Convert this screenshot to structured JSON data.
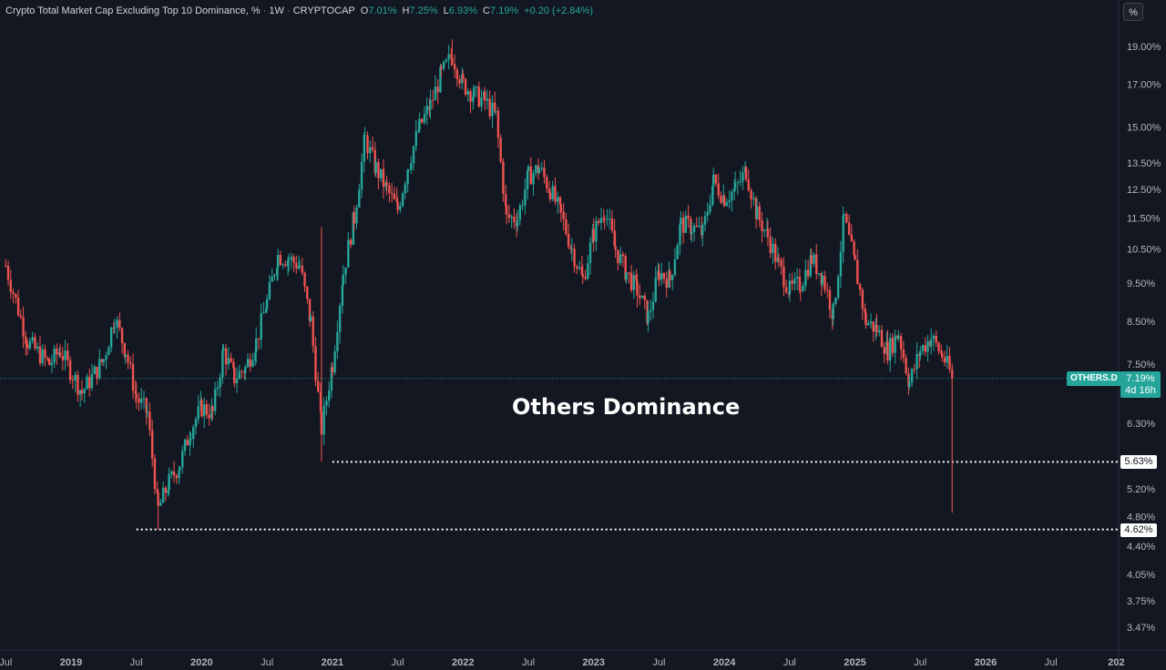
{
  "header": {
    "title": "Crypto Total Market Cap Excluding Top 10 Dominance, %",
    "interval": "1W",
    "exchange": "CRYPTOCAP",
    "open_label": "O",
    "open": "7.01%",
    "high_label": "H",
    "high": "7.25%",
    "low_label": "L",
    "low": "6.93%",
    "close_label": "C",
    "close": "7.19%",
    "change": "+0.20 (+2.84%)"
  },
  "scale_button": "%",
  "annotation": "Others Dominance",
  "symbol_tag": "OTHERS.D",
  "price_tag": {
    "value": "7.19%",
    "countdown": "4d 16h"
  },
  "level_tags": [
    {
      "label": "5.63%"
    },
    {
      "label": "4.62%"
    }
  ],
  "colors": {
    "background": "#131722",
    "up": "#26a69a",
    "down": "#ef5350",
    "text": "#b2b5be"
  },
  "chart_data": {
    "type": "candlestick",
    "y_scale": "log",
    "y_axis_ticks": [
      "19.00%",
      "17.00%",
      "15.00%",
      "13.50%",
      "12.50%",
      "11.50%",
      "10.50%",
      "9.50%",
      "8.50%",
      "7.50%",
      "6.30%",
      "5.20%",
      "4.80%",
      "4.40%",
      "4.05%",
      "3.75%",
      "3.47%"
    ],
    "y_axis_values": [
      19.0,
      17.0,
      15.0,
      13.5,
      12.5,
      11.5,
      10.5,
      9.5,
      8.5,
      7.5,
      6.3,
      5.2,
      4.8,
      4.4,
      4.05,
      3.75,
      3.47
    ],
    "x_axis_ticks": [
      "Jul",
      "2019",
      "Jul",
      "2020",
      "Jul",
      "2021",
      "Jul",
      "2022",
      "Jul",
      "2023",
      "Jul",
      "2024",
      "Jul",
      "2025",
      "Jul",
      "2026",
      "Jul",
      "202"
    ],
    "x_axis_dates": [
      "2018-07",
      "2019-01",
      "2019-07",
      "2020-01",
      "2020-07",
      "2021-01",
      "2021-07",
      "2022-01",
      "2022-07",
      "2023-01",
      "2023-07",
      "2024-01",
      "2024-07",
      "2025-01",
      "2025-07",
      "2026-01",
      "2026-07",
      "2027-01"
    ],
    "x_range": [
      "2018-07",
      "2027-01"
    ],
    "horizontal_levels": [
      {
        "value": 5.63,
        "from": "2021-01",
        "style": "dotted"
      },
      {
        "value": 4.62,
        "from": "2019-07",
        "style": "dotted"
      }
    ],
    "last_price": 7.19,
    "series": [
      {
        "interval": "weekly",
        "path": [
          [
            "2018-07",
            10.0
          ],
          [
            "2018-09",
            8.0
          ],
          [
            "2018-11",
            7.5
          ],
          [
            "2018-12",
            7.8
          ],
          [
            "2019-02",
            6.9
          ],
          [
            "2019-04",
            7.6
          ],
          [
            "2019-05",
            8.6
          ],
          [
            "2019-06",
            7.8
          ],
          [
            "2019-07",
            6.8
          ],
          [
            "2019-08",
            6.5
          ],
          [
            "2019-09",
            4.9
          ],
          [
            "2019-10",
            5.3
          ],
          [
            "2019-11",
            5.6
          ],
          [
            "2019-12",
            6.2
          ],
          [
            "2020-01",
            6.6
          ],
          [
            "2020-02",
            6.5
          ],
          [
            "2020-03",
            7.8
          ],
          [
            "2020-04",
            7.2
          ],
          [
            "2020-05",
            7.4
          ],
          [
            "2020-06",
            8.0
          ],
          [
            "2020-07",
            9.0
          ],
          [
            "2020-08",
            10.3
          ],
          [
            "2020-09",
            10.2
          ],
          [
            "2020-10",
            10.0
          ],
          [
            "2020-11",
            8.5
          ],
          [
            "2020-12",
            6.2
          ],
          [
            "2021-01",
            7.5
          ],
          [
            "2021-02",
            9.8
          ],
          [
            "2021-03",
            11.5
          ],
          [
            "2021-04",
            14.5
          ],
          [
            "2021-05",
            13.3
          ],
          [
            "2021-06",
            12.5
          ],
          [
            "2021-07",
            11.8
          ],
          [
            "2021-08",
            13.5
          ],
          [
            "2021-09",
            15.0
          ],
          [
            "2021-10",
            16.0
          ],
          [
            "2021-11",
            17.5
          ],
          [
            "2021-12",
            18.5
          ],
          [
            "2022-01",
            17.0
          ],
          [
            "2022-02",
            16.5
          ],
          [
            "2022-03",
            16.2
          ],
          [
            "2022-04",
            15.5
          ],
          [
            "2022-05",
            11.5
          ],
          [
            "2022-06",
            11.5
          ],
          [
            "2022-07",
            13.0
          ],
          [
            "2022-08",
            13.3
          ],
          [
            "2022-09",
            12.5
          ],
          [
            "2022-10",
            11.6
          ],
          [
            "2022-11",
            10.5
          ],
          [
            "2022-12",
            9.6
          ],
          [
            "2023-01",
            11.0
          ],
          [
            "2023-02",
            11.8
          ],
          [
            "2023-03",
            10.5
          ],
          [
            "2023-04",
            9.8
          ],
          [
            "2023-05",
            9.3
          ],
          [
            "2023-06",
            8.6
          ],
          [
            "2023-07",
            9.8
          ],
          [
            "2023-08",
            9.6
          ],
          [
            "2023-09",
            11.3
          ],
          [
            "2023-10",
            11.2
          ],
          [
            "2023-11",
            11.0
          ],
          [
            "2023-12",
            12.8
          ],
          [
            "2024-01",
            12.2
          ],
          [
            "2024-02",
            12.5
          ],
          [
            "2024-03",
            13.2
          ],
          [
            "2024-04",
            11.6
          ],
          [
            "2024-05",
            10.9
          ],
          [
            "2024-06",
            10.0
          ],
          [
            "2024-07",
            9.3
          ],
          [
            "2024-08",
            9.5
          ],
          [
            "2024-09",
            10.2
          ],
          [
            "2024-10",
            9.7
          ],
          [
            "2024-11",
            8.7
          ],
          [
            "2024-12",
            11.5
          ],
          [
            "2025-01",
            10.0
          ],
          [
            "2025-02",
            8.5
          ],
          [
            "2025-03",
            8.3
          ],
          [
            "2025-04",
            7.8
          ],
          [
            "2025-05",
            8.2
          ],
          [
            "2025-06",
            7.1
          ],
          [
            "2025-07",
            7.8
          ],
          [
            "2025-08",
            8.1
          ],
          [
            "2025-09",
            7.7
          ],
          [
            "2025-10",
            7.19
          ]
        ]
      }
    ]
  }
}
